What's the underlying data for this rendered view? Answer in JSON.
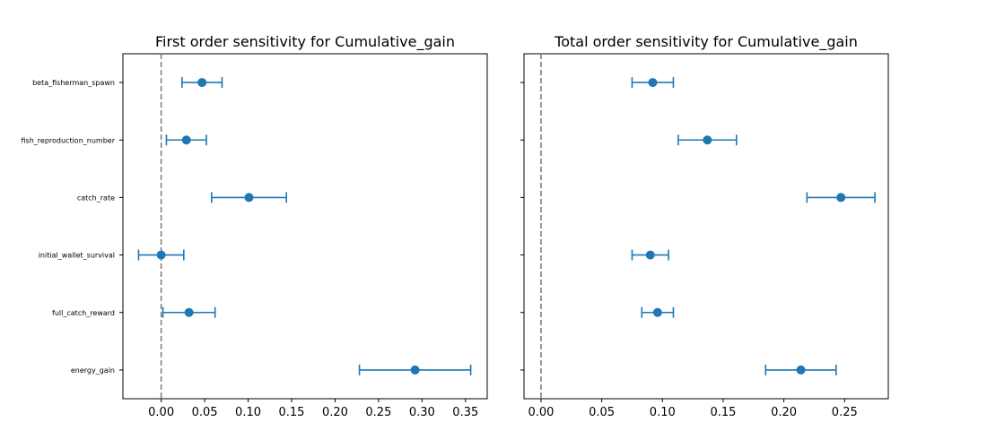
{
  "chart_data": [
    {
      "type": "scatter",
      "title": "First order sensitivity for Cumulative_gain",
      "xlabel": "",
      "ylabel": "",
      "xlim": [
        -0.044,
        0.375
      ],
      "xticks": [
        "0.00",
        "0.05",
        "0.10",
        "0.15",
        "0.20",
        "0.25",
        "0.30",
        "0.35"
      ],
      "categories": [
        "beta_fisherman_spawn",
        "fish_reproduction_number",
        "catch_rate",
        "initial_wallet_survival",
        "full_catch_reward",
        "energy_gain"
      ],
      "values": [
        0.047,
        0.029,
        0.101,
        0.0,
        0.032,
        0.292
      ],
      "errors": [
        0.023,
        0.023,
        0.043,
        0.026,
        0.03,
        0.064
      ],
      "reference_line": 0.0,
      "grid": false,
      "colors": {
        "series": "#1f77b4",
        "reference_line": "#808080"
      }
    },
    {
      "type": "scatter",
      "title": "Total order sensitivity for Cumulative_gain",
      "xlabel": "",
      "ylabel": "",
      "xlim": [
        -0.014,
        0.286
      ],
      "xticks": [
        "0.00",
        "0.05",
        "0.10",
        "0.15",
        "0.20",
        "0.25"
      ],
      "categories": [
        "beta_fisherman_spawn",
        "fish_reproduction_number",
        "catch_rate",
        "initial_wallet_survival",
        "full_catch_reward",
        "energy_gain"
      ],
      "values": [
        0.092,
        0.137,
        0.247,
        0.09,
        0.096,
        0.214
      ],
      "errors": [
        0.017,
        0.024,
        0.028,
        0.015,
        0.013,
        0.029
      ],
      "reference_line": 0.0,
      "grid": false,
      "colors": {
        "series": "#1f77b4",
        "reference_line": "#808080"
      }
    }
  ]
}
